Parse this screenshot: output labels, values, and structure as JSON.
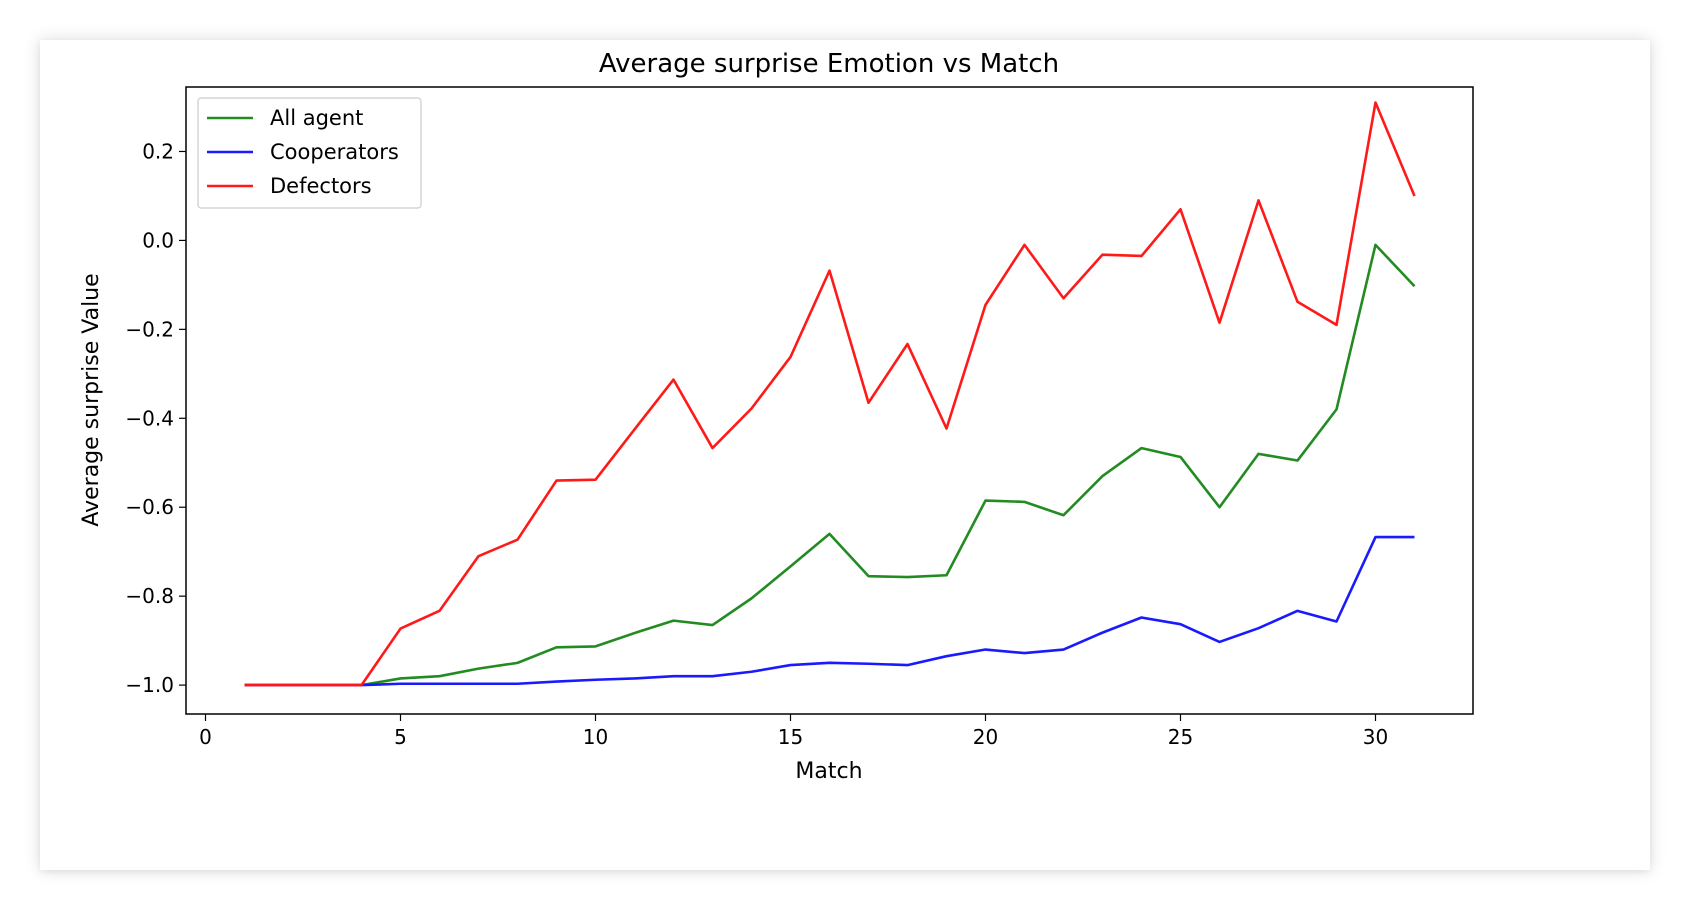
{
  "chart_data": {
    "type": "line",
    "title": "Average surprise Emotion vs Match",
    "xlabel": "Match",
    "ylabel": "Average surprise Value",
    "xlim": [
      -0.5,
      32.5
    ],
    "ylim": [
      -1.065,
      0.345
    ],
    "xticks": [
      0,
      5,
      10,
      15,
      20,
      25,
      30
    ],
    "xtick_labels": [
      "0",
      "5",
      "10",
      "15",
      "20",
      "25",
      "30"
    ],
    "yticks": [
      -1.0,
      -0.8,
      -0.6,
      -0.4,
      -0.2,
      0.0,
      0.2
    ],
    "ytick_labels": [
      "−1.0",
      "−0.8",
      "−0.6",
      "−0.4",
      "−0.2",
      "0.0",
      "0.2"
    ],
    "grid": false,
    "legend_position": "upper-left",
    "x": [
      1,
      2,
      3,
      4,
      5,
      6,
      7,
      8,
      9,
      10,
      11,
      12,
      13,
      14,
      15,
      16,
      17,
      18,
      19,
      20,
      21,
      22,
      23,
      24,
      25,
      26,
      27,
      28,
      29,
      30,
      31
    ],
    "series": [
      {
        "name": "All agent",
        "color": "#228b22",
        "values": [
          -1.0,
          -1.0,
          -1.0,
          -1.0,
          -0.985,
          -0.98,
          -0.963,
          -0.95,
          -0.915,
          -0.913,
          -0.883,
          -0.855,
          -0.865,
          -0.805,
          -0.733,
          -0.66,
          -0.755,
          -0.757,
          -0.753,
          -0.585,
          -0.588,
          -0.618,
          -0.53,
          -0.467,
          -0.487,
          -0.6,
          -0.48,
          -0.495,
          -0.38,
          -0.01,
          -0.103
        ]
      },
      {
        "name": "Cooperators",
        "color": "#1a1aff",
        "values": [
          -1.0,
          -1.0,
          -1.0,
          -1.0,
          -0.997,
          -0.997,
          -0.997,
          -0.997,
          -0.992,
          -0.988,
          -0.985,
          -0.98,
          -0.98,
          -0.97,
          -0.955,
          -0.95,
          -0.952,
          -0.955,
          -0.935,
          -0.92,
          -0.928,
          -0.92,
          -0.882,
          -0.848,
          -0.863,
          -0.903,
          -0.872,
          -0.833,
          -0.857,
          -0.667,
          -0.667
        ]
      },
      {
        "name": "Defectors",
        "color": "#ff1a1a",
        "values": [
          -1.0,
          -1.0,
          -1.0,
          -1.0,
          -0.873,
          -0.833,
          -0.71,
          -0.673,
          -0.54,
          -0.538,
          -0.425,
          -0.313,
          -0.467,
          -0.378,
          -0.262,
          -0.068,
          -0.365,
          -0.233,
          -0.423,
          -0.145,
          -0.01,
          -0.13,
          -0.032,
          -0.035,
          0.07,
          -0.185,
          0.09,
          -0.138,
          -0.19,
          0.31,
          0.1
        ]
      }
    ]
  }
}
